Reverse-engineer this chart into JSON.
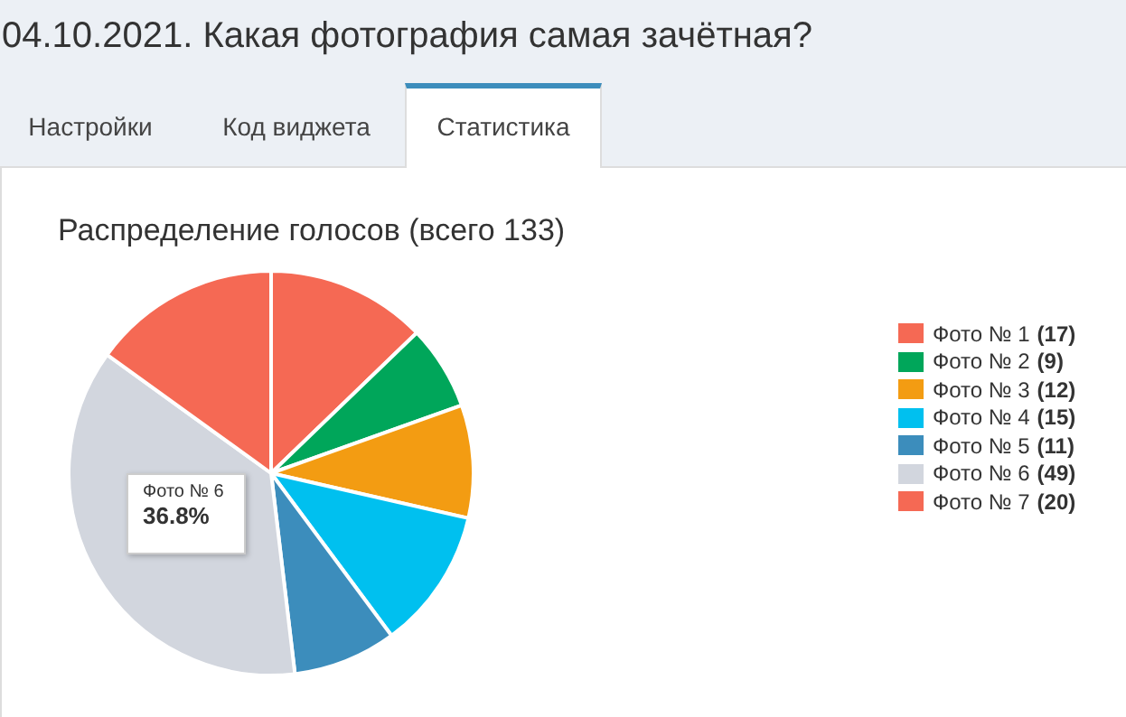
{
  "chart_data": {
    "type": "pie",
    "title": "04.10.2021. Какая фотография самая зачётная?",
    "subtitle": "Распределение голосов (всего 133)",
    "categories": [
      "Фото № 1",
      "Фото № 2",
      "Фото № 3",
      "Фото № 4",
      "Фото № 5",
      "Фото № 6",
      "Фото № 7"
    ],
    "values": [
      17,
      9,
      12,
      15,
      11,
      49,
      20
    ],
    "value_labels": [
      "(17)",
      "(9)",
      "(12)",
      "(15)",
      "(11)",
      "(49)",
      "(20)"
    ],
    "colors": [
      "#f56954",
      "#00a65a",
      "#f39c12",
      "#00c0ef",
      "#3c8dbc",
      "#d2d6de",
      "#f56954"
    ],
    "legend": "right",
    "annotations": [
      "Настройки",
      "Код виджета",
      "Статистика",
      "Фото № 6",
      "36.8%"
    ]
  }
}
